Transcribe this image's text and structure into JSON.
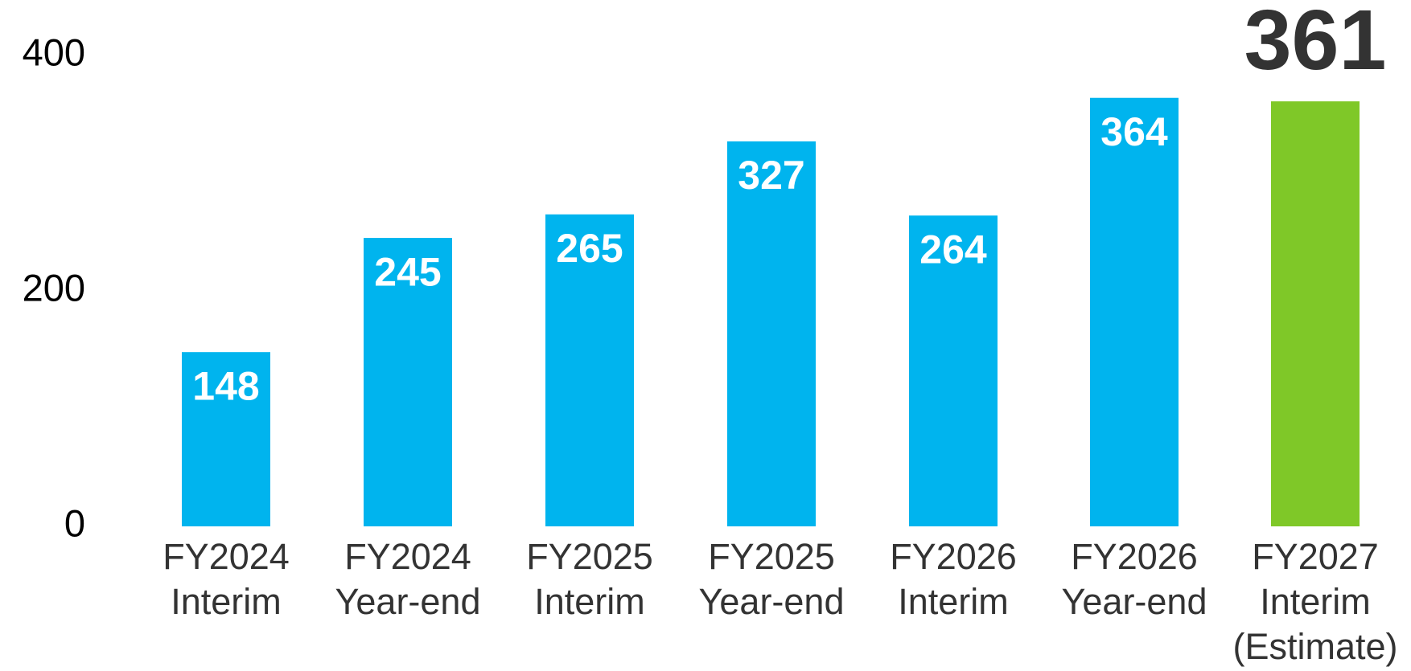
{
  "chart_data": {
    "type": "bar",
    "categories": [
      [
        "FY2024",
        "Interim"
      ],
      [
        "FY2024",
        "Year-end"
      ],
      [
        "FY2025",
        "Interim"
      ],
      [
        "FY2025",
        "Year-end"
      ],
      [
        "FY2026",
        "Interim"
      ],
      [
        "FY2026",
        "Year-end"
      ],
      [
        "FY2027",
        "Interim",
        "(Estimate)"
      ]
    ],
    "values": [
      148,
      245,
      265,
      327,
      264,
      364,
      361
    ],
    "colors": [
      "#00b4ee",
      "#00b4ee",
      "#00b4ee",
      "#00b4ee",
      "#00b4ee",
      "#00b4ee",
      "#7fc828"
    ],
    "ylim": [
      0,
      400
    ],
    "yticks": [
      0,
      200,
      400
    ],
    "grid": false
  }
}
